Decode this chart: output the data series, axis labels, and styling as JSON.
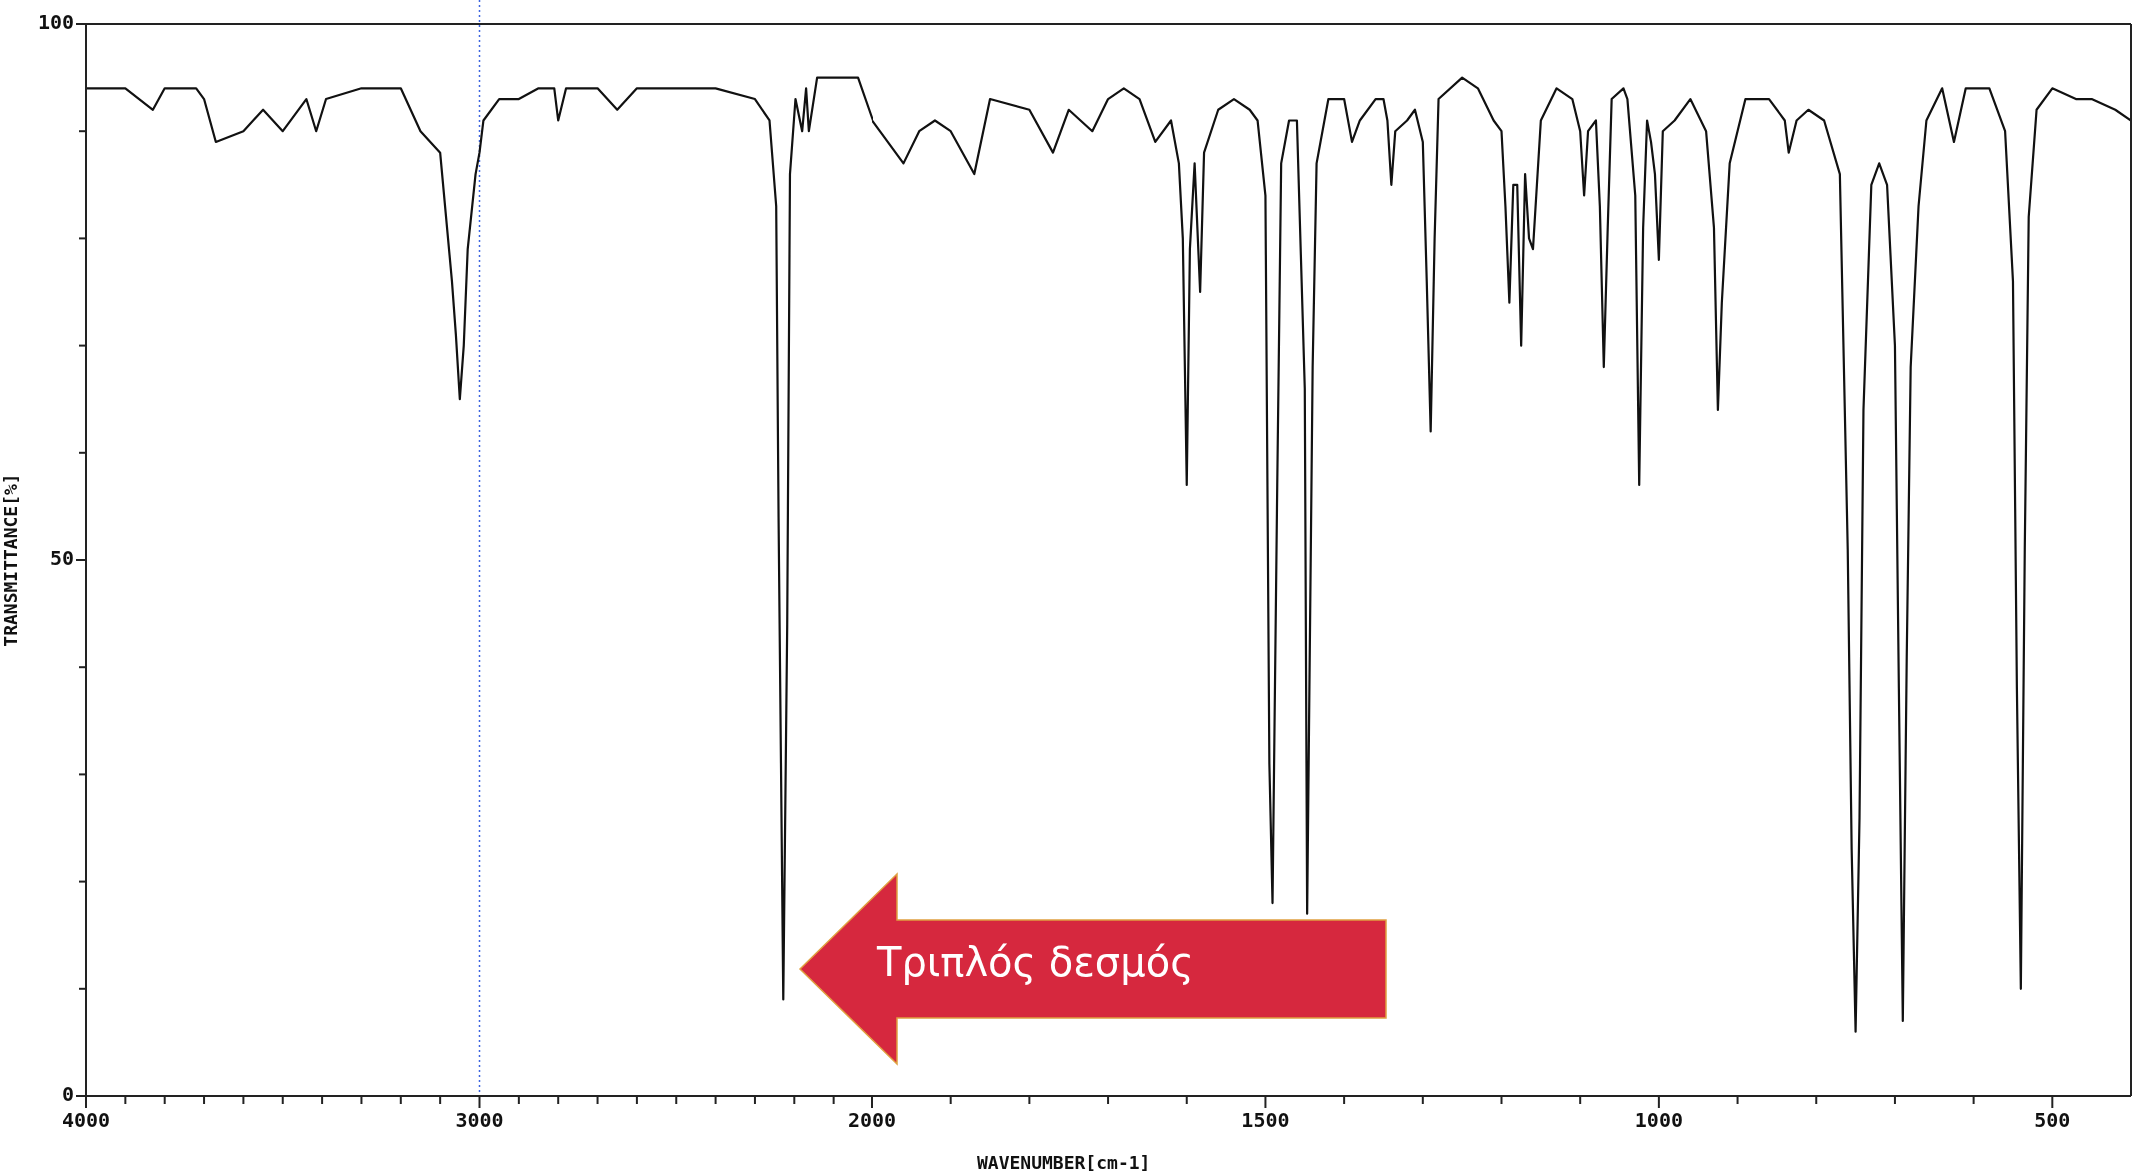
{
  "chart_data": [
    {
      "type": "line",
      "ylabel": "TRANSMITTANCE[%]",
      "x": [
        4000,
        3900,
        3830,
        3800,
        3720,
        3700,
        3670,
        3600,
        3550,
        3500,
        3440,
        3415,
        3390,
        3300,
        3200,
        3150,
        3100,
        3070,
        3060,
        3050,
        3040,
        3030,
        3010,
        3000,
        2990,
        2950,
        2900,
        2850,
        2810,
        2800,
        2780,
        2700,
        2650,
        2600,
        2500,
        2400,
        2300,
        2263,
        2246,
        2240,
        2228,
        2218,
        2211,
        2197,
        2180,
        2170,
        2163,
        2142,
        2038,
        2000
      ],
      "series": [
        {
          "color": "#111111",
          "values": [
            94,
            94,
            92,
            94,
            94,
            93,
            89,
            90,
            92,
            90,
            93,
            90,
            93,
            94,
            94,
            90,
            88,
            76,
            71,
            65,
            70,
            79,
            86,
            88,
            91,
            93,
            93,
            94,
            94,
            91,
            94,
            94,
            92,
            94,
            94,
            94,
            93,
            91,
            83,
            54,
            9,
            44,
            86,
            93,
            90,
            94,
            90,
            95,
            95,
            91
          ]
        }
      ],
      "xlim": [
        4000,
        2000
      ],
      "xticks": [
        4000,
        {
          "value": 3900,
          "label": null
        },
        {
          "value": 3800,
          "label": null
        },
        {
          "value": 3700,
          "label": null
        },
        {
          "value": 3600,
          "label": null
        },
        {
          "value": 3500,
          "label": null
        },
        {
          "value": 3400,
          "label": null
        },
        {
          "value": 3300,
          "label": null
        },
        {
          "value": 3200,
          "label": null
        },
        {
          "value": 3100,
          "label": null
        },
        3000,
        {
          "value": 2900,
          "label": null
        },
        {
          "value": 2800,
          "label": null
        },
        {
          "value": 2700,
          "label": null
        },
        {
          "value": 2600,
          "label": null
        },
        {
          "value": 2500,
          "label": null
        },
        {
          "value": 2400,
          "label": null
        },
        {
          "value": 2300,
          "label": null
        },
        {
          "value": 2200,
          "label": null
        },
        {
          "value": 2100,
          "label": null
        }
      ],
      "ylim": [
        0,
        100
      ],
      "yticks": [
        0,
        {
          "value": 10,
          "label": null
        },
        {
          "value": 20,
          "label": null
        },
        {
          "value": 30,
          "label": null
        },
        {
          "value": 40,
          "label": null
        },
        50,
        {
          "value": 60,
          "label": null
        },
        {
          "value": 70,
          "label": null
        },
        {
          "value": 80,
          "label": null
        },
        {
          "value": 90,
          "label": null
        },
        100
      ],
      "ref_lines": [
        {
          "axis": "x",
          "value": 3000,
          "color": "#3b63e0",
          "line_style": "dotted"
        }
      ],
      "grid": false,
      "legend": false,
      "marker": "none",
      "line_style": "solid"
    },
    {
      "type": "line",
      "xlabel": "WAVENUMBER[cm-1]",
      "x": [
        2000,
        1990,
        1960,
        1940,
        1920,
        1900,
        1870,
        1850,
        1800,
        1770,
        1750,
        1720,
        1700,
        1680,
        1660,
        1640,
        1620,
        1610,
        1605,
        1600,
        1596,
        1590,
        1583,
        1578,
        1560,
        1540,
        1520,
        1510,
        1500,
        1495,
        1491,
        1485,
        1480,
        1470,
        1460,
        1450,
        1447,
        1440,
        1435,
        1420,
        1400,
        1390,
        1380,
        1360,
        1350,
        1345,
        1340,
        1335,
        1320,
        1310,
        1300,
        1295,
        1290,
        1285,
        1280,
        1250,
        1230,
        1210,
        1200,
        1195,
        1190,
        1185,
        1180,
        1175,
        1170,
        1165,
        1160,
        1155,
        1150,
        1130,
        1110,
        1100,
        1095,
        1090,
        1080,
        1075,
        1070,
        1065,
        1060,
        1045,
        1040,
        1030,
        1025,
        1020,
        1015,
        1010,
        1005,
        1000,
        995,
        980,
        960,
        940,
        930,
        925,
        920,
        910,
        890,
        860,
        840,
        835,
        825,
        810,
        790,
        770,
        760,
        755,
        750,
        745,
        740,
        730,
        720,
        710,
        700,
        695,
        690,
        685,
        680,
        670,
        660,
        640,
        625,
        610,
        580,
        560,
        550,
        545,
        540,
        535,
        530,
        520,
        500,
        470,
        450,
        420,
        400
      ],
      "series": [
        {
          "color": "#111111",
          "values": [
            91,
            90,
            87,
            90,
            91,
            90,
            86,
            93,
            92,
            88,
            92,
            90,
            93,
            94,
            93,
            89,
            91,
            87,
            80,
            57,
            79,
            87,
            75,
            88,
            92,
            93,
            92,
            91,
            84,
            31,
            18,
            57,
            87,
            91,
            91,
            66,
            17,
            68,
            87,
            93,
            93,
            89,
            91,
            93,
            93,
            91,
            85,
            90,
            91,
            92,
            89,
            76,
            62,
            80,
            93,
            95,
            94,
            91,
            90,
            83,
            74,
            85,
            85,
            70,
            86,
            80,
            79,
            85,
            91,
            94,
            93,
            90,
            84,
            90,
            91,
            83,
            68,
            81,
            93,
            94,
            93,
            84,
            57,
            81,
            91,
            89,
            86,
            78,
            90,
            91,
            93,
            90,
            81,
            64,
            74,
            87,
            93,
            93,
            91,
            88,
            91,
            92,
            91,
            86,
            51,
            23,
            6,
            26,
            64,
            85,
            87,
            85,
            70,
            38,
            7,
            41,
            68,
            83,
            91,
            94,
            89,
            94,
            94,
            90,
            76,
            38,
            10,
            51,
            82,
            92,
            94,
            93,
            93,
            92,
            91
          ]
        }
      ],
      "xlim": [
        2000,
        400
      ],
      "xticks": [
        2000,
        {
          "value": 1900,
          "label": null
        },
        {
          "value": 1800,
          "label": null
        },
        {
          "value": 1700,
          "label": null
        },
        {
          "value": 1600,
          "label": null
        },
        1500,
        {
          "value": 1400,
          "label": null
        },
        {
          "value": 1300,
          "label": null
        },
        {
          "value": 1200,
          "label": null
        },
        {
          "value": 1100,
          "label": null
        },
        1000,
        {
          "value": 900,
          "label": null
        },
        {
          "value": 800,
          "label": null
        },
        {
          "value": 700,
          "label": null
        },
        {
          "value": 600,
          "label": null
        },
        500
      ],
      "ylim": [
        0,
        100
      ],
      "tick_labels": "x",
      "annotations": [
        "Τριπλός δεσμός"
      ],
      "grid": false,
      "legend": false,
      "marker": "none",
      "line_style": "solid"
    }
  ]
}
